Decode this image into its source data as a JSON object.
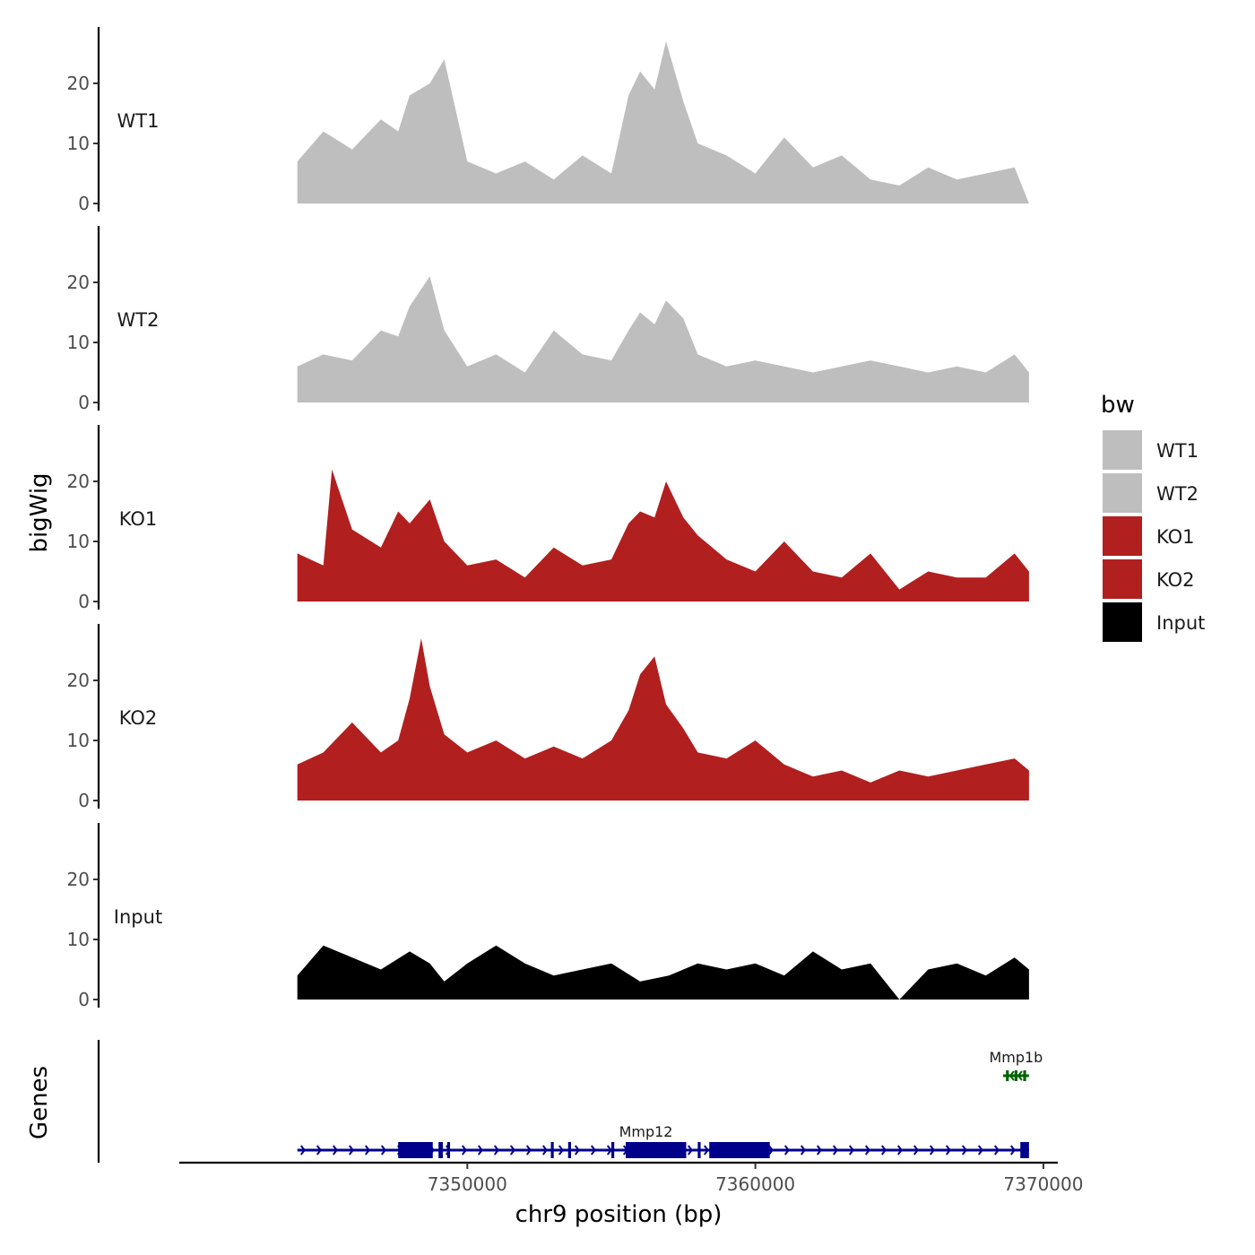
{
  "chart_data": {
    "type": "area",
    "title": "",
    "xlabel": "chr9 position (bp)",
    "ylabel": "bigWig",
    "genes_label": "Genes",
    "xlim": [
      7340000,
      7370500
    ],
    "ylim": [
      0,
      28
    ],
    "x_ticks": [
      7350000,
      7360000,
      7370000
    ],
    "x_tick_labels": [
      "7350000",
      "7360000",
      "7370000"
    ],
    "y_ticks": [
      0,
      10,
      20
    ],
    "y_tick_labels": [
      "0",
      "10",
      "20"
    ],
    "legend": {
      "title": "bw",
      "position": "right",
      "entries": [
        {
          "label": "WT1",
          "color": "#bebebe"
        },
        {
          "label": "WT2",
          "color": "#bebebe"
        },
        {
          "label": "KO1",
          "color": "#b21f1f"
        },
        {
          "label": "KO2",
          "color": "#b21f1f"
        },
        {
          "label": "Input",
          "color": "#000000"
        }
      ]
    },
    "series": [
      {
        "name": "WT1",
        "color": "#bebebe",
        "x": [
          7344100,
          7345000,
          7346000,
          7347000,
          7347600,
          7348000,
          7348700,
          7349200,
          7350000,
          7351000,
          7352000,
          7353000,
          7354000,
          7355000,
          7355600,
          7356000,
          7356500,
          7356900,
          7357500,
          7358000,
          7359000,
          7360000,
          7361000,
          7362000,
          7363000,
          7364000,
          7365000,
          7366000,
          7367000,
          7368000,
          7369000,
          7369500
        ],
        "values": [
          7,
          12,
          9,
          14,
          12,
          18,
          20,
          24,
          7,
          5,
          7,
          4,
          8,
          5,
          18,
          22,
          19,
          27,
          17,
          10,
          8,
          5,
          11,
          6,
          8,
          4,
          3,
          6,
          4,
          5,
          6,
          0
        ]
      },
      {
        "name": "WT2",
        "color": "#bebebe",
        "x": [
          7344100,
          7345000,
          7346000,
          7347000,
          7347600,
          7348000,
          7348700,
          7349200,
          7350000,
          7351000,
          7352000,
          7353000,
          7354000,
          7355000,
          7355600,
          7356000,
          7356500,
          7356900,
          7357500,
          7358000,
          7359000,
          7360000,
          7361000,
          7362000,
          7363000,
          7364000,
          7365000,
          7366000,
          7367000,
          7368000,
          7369000,
          7369500
        ],
        "values": [
          6,
          8,
          7,
          12,
          11,
          16,
          21,
          12,
          6,
          8,
          5,
          12,
          8,
          7,
          12,
          15,
          13,
          17,
          14,
          8,
          6,
          7,
          6,
          5,
          6,
          7,
          6,
          5,
          6,
          5,
          8,
          5
        ]
      },
      {
        "name": "KO1",
        "color": "#b21f1f",
        "x": [
          7344100,
          7345000,
          7345300,
          7346000,
          7347000,
          7347600,
          7348000,
          7348700,
          7349200,
          7350000,
          7351000,
          7352000,
          7353000,
          7354000,
          7355000,
          7355600,
          7356000,
          7356500,
          7356900,
          7357500,
          7358000,
          7359000,
          7360000,
          7361000,
          7362000,
          7363000,
          7364000,
          7365000,
          7366000,
          7367000,
          7368000,
          7369000,
          7369500
        ],
        "values": [
          8,
          6,
          22,
          12,
          9,
          15,
          13,
          17,
          10,
          6,
          7,
          4,
          9,
          6,
          7,
          13,
          15,
          14,
          20,
          14,
          11,
          7,
          5,
          10,
          5,
          4,
          8,
          2,
          5,
          4,
          4,
          8,
          5
        ]
      },
      {
        "name": "KO2",
        "color": "#b21f1f",
        "x": [
          7344100,
          7345000,
          7346000,
          7347000,
          7347600,
          7348000,
          7348400,
          7348700,
          7349200,
          7350000,
          7351000,
          7352000,
          7353000,
          7354000,
          7355000,
          7355600,
          7356000,
          7356500,
          7356900,
          7357500,
          7358000,
          7359000,
          7360000,
          7361000,
          7362000,
          7363000,
          7364000,
          7365000,
          7366000,
          7367000,
          7368000,
          7369000,
          7369500
        ],
        "values": [
          6,
          8,
          13,
          8,
          10,
          17,
          27,
          19,
          11,
          8,
          10,
          7,
          9,
          7,
          10,
          15,
          21,
          24,
          16,
          12,
          8,
          7,
          10,
          6,
          4,
          5,
          3,
          5,
          4,
          5,
          6,
          7,
          5
        ]
      },
      {
        "name": "Input",
        "color": "#000000",
        "x": [
          7344100,
          7345000,
          7346000,
          7347000,
          7348000,
          7348700,
          7349200,
          7350000,
          7351000,
          7352000,
          7353000,
          7354000,
          7355000,
          7356000,
          7357000,
          7358000,
          7359000,
          7360000,
          7361000,
          7362000,
          7363000,
          7364000,
          7365000,
          7366000,
          7367000,
          7368000,
          7369000,
          7369500
        ],
        "values": [
          4,
          9,
          7,
          5,
          8,
          6,
          3,
          6,
          9,
          6,
          4,
          5,
          6,
          3,
          4,
          6,
          5,
          6,
          4,
          8,
          5,
          6,
          0,
          5,
          6,
          4,
          7,
          5
        ]
      }
    ],
    "genes": [
      {
        "name": "Mmp12",
        "color": "#00008b",
        "start": 7344100,
        "end": 7369500,
        "strand": "+",
        "exons": [
          [
            7347600,
            7348800
          ],
          [
            7349000,
            7349150
          ],
          [
            7349300,
            7349400
          ],
          [
            7352900,
            7353000
          ],
          [
            7353500,
            7353600
          ],
          [
            7355000,
            7355100
          ],
          [
            7355500,
            7357600
          ],
          [
            7358000,
            7358100
          ],
          [
            7358400,
            7360500
          ],
          [
            7369200,
            7369500
          ]
        ]
      },
      {
        "name": "Mmp1b",
        "color": "#006400",
        "start": 7368600,
        "end": 7369500,
        "strand": "-",
        "exons": [
          [
            7368700,
            7368800
          ],
          [
            7369000,
            7369100
          ],
          [
            7369300,
            7369400
          ]
        ]
      }
    ]
  }
}
